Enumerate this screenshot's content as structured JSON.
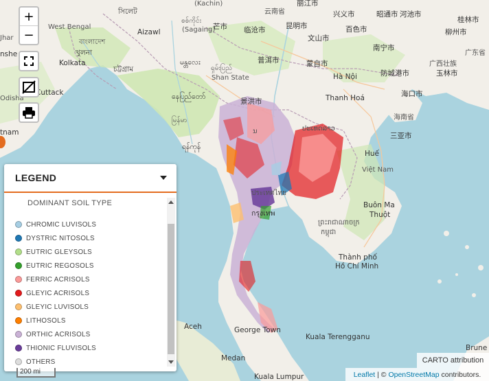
{
  "map": {
    "labels": [
      {
        "id": "kachin",
        "text": "(Kachin)"
      },
      {
        "id": "yunnan",
        "text": "云南省"
      },
      {
        "id": "west_bengal",
        "text": "West Bengal"
      },
      {
        "id": "sillet",
        "text": "সিলেট"
      },
      {
        "id": "aizawl",
        "text": "Aizawl"
      },
      {
        "id": "sagaing",
        "text": "(Sagaing)"
      },
      {
        "id": "sagaing_mm",
        "text": "စစ်ကိုင်း"
      },
      {
        "id": "bangladesh",
        "text": "বাংলাদেশ"
      },
      {
        "id": "khulna",
        "text": "খুলনা"
      },
      {
        "id": "kolkata",
        "text": "Kolkata"
      },
      {
        "id": "chattogram",
        "text": "চট্টগ্রাম"
      },
      {
        "id": "mandalay",
        "text": "မန္တလေး"
      },
      {
        "id": "shan",
        "text": "ရှမ်းပြည်"
      },
      {
        "id": "shan_state",
        "text": "Shan State"
      },
      {
        "id": "naypyidaw",
        "text": "နေပြည်တော်"
      },
      {
        "id": "myanmar",
        "text": "မြန်မာ"
      },
      {
        "id": "yangon",
        "text": "ရန်ကုန်"
      },
      {
        "id": "cuttack",
        "text": "Cuttack"
      },
      {
        "id": "odisha",
        "text": "Odisha"
      },
      {
        "id": "andhra",
        "text": "tnam"
      },
      {
        "id": "jhar",
        "text": "Jhar"
      },
      {
        "id": "bangla_frag",
        "text": "nshe"
      },
      {
        "id": "laos",
        "text": "ປະເທດລາວ"
      },
      {
        "id": "laos_frag",
        "text": "ນ"
      },
      {
        "id": "thailand",
        "text": "ประเทศไทย"
      },
      {
        "id": "cambodia",
        "text": "ព្រះរាជាណាចក្រ"
      },
      {
        "id": "cambodia2",
        "text": "កម្ពុជា"
      },
      {
        "id": "vietnam",
        "text": "Việt Nam"
      },
      {
        "id": "thanh_hoa",
        "text": "Thanh Hoá"
      },
      {
        "id": "hue",
        "text": "Huế"
      },
      {
        "id": "buon_ma",
        "text": "Buôn Ma"
      },
      {
        "id": "thuot",
        "text": "Thuột"
      },
      {
        "id": "hcmc1",
        "text": "Thành phố"
      },
      {
        "id": "hcmc2",
        "text": "Hồ Chí Minh"
      },
      {
        "id": "george_town",
        "text": "George Town"
      },
      {
        "id": "kuala_t",
        "text": "Kuala Terengganu"
      },
      {
        "id": "aceh",
        "text": "Aceh"
      },
      {
        "id": "medan",
        "text": "Medan"
      },
      {
        "id": "kuala_l",
        "text": "Kuala Lumpur"
      },
      {
        "id": "brune",
        "text": "Brune"
      },
      {
        "id": "hanoi",
        "text": "Hà Nội"
      },
      {
        "id": "hainan",
        "text": "海南省"
      },
      {
        "id": "sanya",
        "text": "三亚市"
      },
      {
        "id": "haikou",
        "text": "海口市"
      },
      {
        "id": "guangxi",
        "text": "广西壮族"
      },
      {
        "id": "guangdong",
        "text": "广东省"
      },
      {
        "id": "kunming",
        "text": "昆明市"
      },
      {
        "id": "lincang",
        "text": "临沧市"
      },
      {
        "id": "puer",
        "text": "普洱市"
      },
      {
        "id": "wenshan",
        "text": "文山市"
      },
      {
        "id": "baise",
        "text": "百色市"
      },
      {
        "id": "hechi",
        "text": "河池市"
      },
      {
        "id": "liuzhou",
        "text": "柳州市"
      },
      {
        "id": "nanning",
        "text": "南宁市"
      },
      {
        "id": "yulin",
        "text": "玉林市"
      },
      {
        "id": "fangcheng",
        "text": "防城港市"
      },
      {
        "id": "mengzi",
        "text": "蒙自市"
      },
      {
        "id": "jinghong",
        "text": "景洪市"
      },
      {
        "id": "baoshan",
        "text": "芒市"
      },
      {
        "id": "lijiang",
        "text": "丽江市"
      },
      {
        "id": "xingyi",
        "text": "兴义市"
      },
      {
        "id": "zhaotong",
        "text": "昭通市"
      },
      {
        "id": "guilin",
        "text": "桂林市"
      },
      {
        "id": "bangkok",
        "text": "กรุงเทพ"
      }
    ]
  },
  "controls": {
    "zoom_in": "+",
    "zoom_out": "−"
  },
  "legend": {
    "title": "LEGEND",
    "subtitle": "DOMINANT SOIL TYPE",
    "items": [
      {
        "label": "CHROMIC LUVISOLS",
        "color": "#a6cee3"
      },
      {
        "label": "DYSTRIC NITOSOLS",
        "color": "#1f78b4"
      },
      {
        "label": "EUTRIC GLEYSOLS",
        "color": "#b2df8a"
      },
      {
        "label": "EUTRIC REGOSOLS",
        "color": "#33a02c"
      },
      {
        "label": "FERRIC ACRISOLS",
        "color": "#fb9a99"
      },
      {
        "label": "GLEYIC ACRISOLS",
        "color": "#e31a1c"
      },
      {
        "label": "GLEYIC LUVISOLS",
        "color": "#fdbf6f"
      },
      {
        "label": "LITHOSOLS",
        "color": "#ff7f00"
      },
      {
        "label": "ORTHIC ACRISOLS",
        "color": "#cab2d6"
      },
      {
        "label": "THIONIC FLUVISOLS",
        "color": "#6a3d9a"
      },
      {
        "label": "OTHERS",
        "color": "#dddddd"
      }
    ]
  },
  "scale": {
    "label": "200 mi"
  },
  "attribution": {
    "carto": "CARTO attribution",
    "leaflet": "Leaflet",
    "separator": " | © ",
    "osm": "OpenStreetMap",
    "contributors": " contributors."
  },
  "colors": {
    "sea": "#aad3df",
    "land": "#f2efe9",
    "forest": "#c8e6a9",
    "accent": "#e36c1f"
  }
}
